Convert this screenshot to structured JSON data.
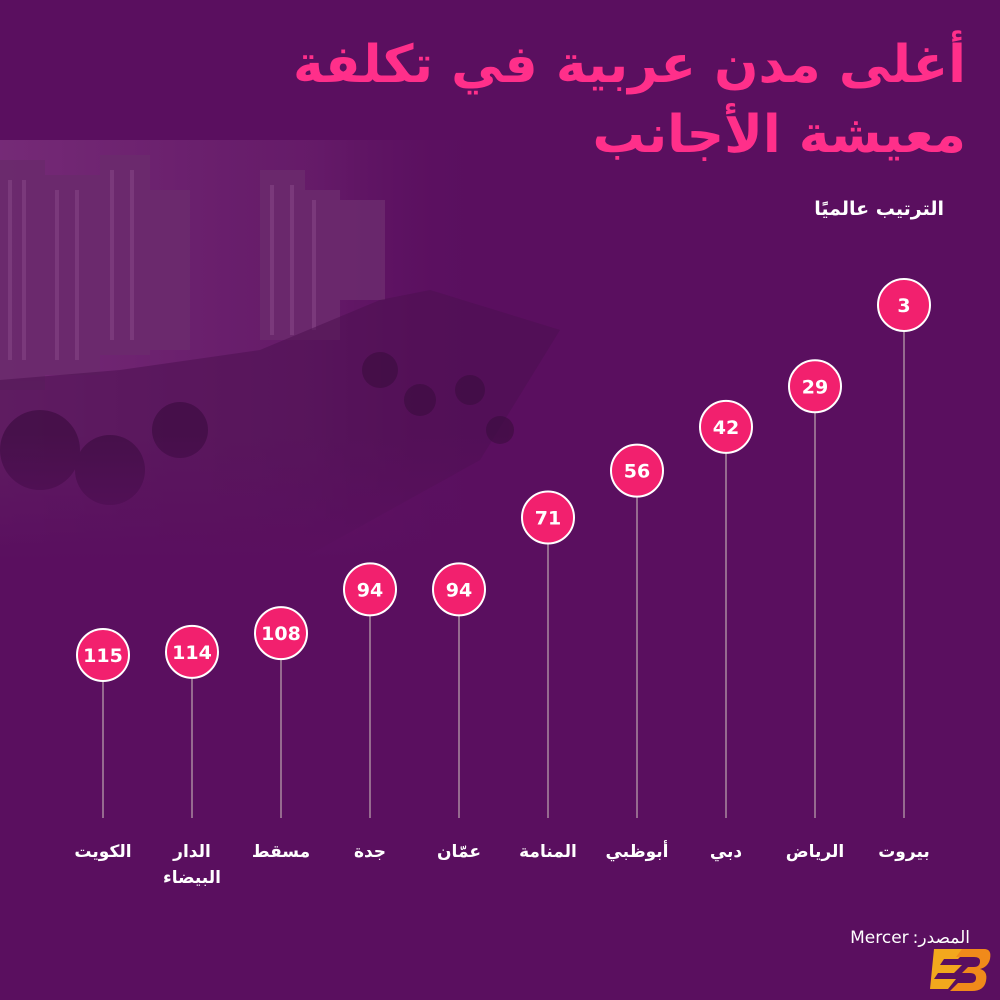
{
  "title_line1": "أغلى مدن عربية في تكلفة",
  "title_line2": "معيشة الأجانب",
  "subtitle": "الترتيب عالميًا",
  "source_label": "المصدر:",
  "source_name": "Mercer",
  "colors": {
    "background": "#5a0f5f",
    "accent": "#f2206e",
    "title": "#ff2f8a",
    "line": "#a9899f"
  },
  "chart_data": {
    "type": "lollipop",
    "ylabel": "",
    "categories": [
      "الكويت",
      "الدار البيضاء",
      "مسقط",
      "جدة",
      "عمّان",
      "المنامة",
      "أبوظبي",
      "دبي",
      "الرياض",
      "بيروت"
    ],
    "category_lines": [
      [
        "الكويت"
      ],
      [
        "الدار",
        "البيضاء"
      ],
      [
        "مسقط"
      ],
      [
        "جدة"
      ],
      [
        "عمّان"
      ],
      [
        "المنامة"
      ],
      [
        "أبوظبي"
      ],
      [
        "دبي"
      ],
      [
        "الرياض"
      ],
      [
        "بيروت"
      ]
    ],
    "values": [
      115,
      114,
      108,
      94,
      94,
      71,
      56,
      42,
      29,
      3
    ],
    "y_scale": "rank (lower = higher position)"
  }
}
